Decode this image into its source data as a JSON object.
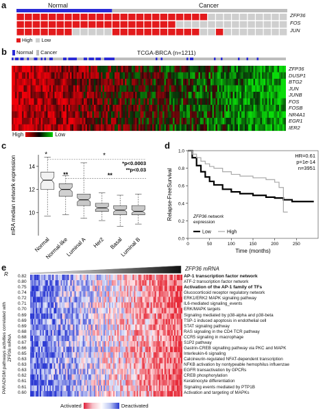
{
  "panel_a": {
    "letter": "a",
    "group_normal": "Normal",
    "group_cancer": "Cancer",
    "genes": [
      "ZFP36",
      "FOS",
      "JUN"
    ],
    "legend_high": "High",
    "legend_low": "Low",
    "colors": {
      "normal_bar": "#2b2bd6",
      "cancer_bar": "#bdbdbd",
      "high": "#e31a1c",
      "low": "#cfcfcf"
    }
  },
  "panel_b": {
    "letter": "b",
    "legend_normal": "Normal",
    "legend_cancer": "Cancer",
    "title": "TCGA-BRCA (n=1211)",
    "genes": [
      "ZFP36",
      "DUSP1",
      "BTG2",
      "JUN",
      "JUNB",
      "FOS",
      "FOSB",
      "NR4A1",
      "EGR1",
      "IER2"
    ],
    "scale_high": "High",
    "scale_low": "Low"
  },
  "panel_c": {
    "letter": "c",
    "chart_data": {
      "type": "box",
      "ylabel": "mRA median network expression",
      "categories": [
        "Normal",
        "Normal-like",
        "Luminal A",
        "Her2",
        "Basal",
        "Luminal B"
      ],
      "ylim": [
        8,
        15
      ],
      "yticks": [
        10,
        12,
        14
      ],
      "boxes": [
        {
          "min": 9.7,
          "q1": 12.0,
          "median": 12.8,
          "q3": 13.5,
          "max": 14.8
        },
        {
          "min": 9.8,
          "q1": 11.4,
          "median": 12.0,
          "q3": 12.5,
          "max": 13.2
        },
        {
          "min": 9.5,
          "q1": 10.6,
          "median": 11.1,
          "q3": 11.6,
          "max": 14.3
        },
        {
          "min": 9.3,
          "q1": 10.1,
          "median": 10.4,
          "q3": 10.8,
          "max": 11.7
        },
        {
          "min": 8.8,
          "q1": 9.8,
          "median": 10.2,
          "q3": 10.6,
          "max": 11.5
        },
        {
          "min": 9.0,
          "q1": 9.8,
          "median": 10.1,
          "q3": 10.6,
          "max": 11.6
        }
      ],
      "annotations": {
        "star": "*",
        "dstar": "**",
        "p1": "*p<0.0003",
        "p2": "**p<0.03"
      }
    }
  },
  "panel_d": {
    "letter": "d",
    "chart_data": {
      "type": "line",
      "ylabel": "Relapse-FreeSurvival",
      "xlabel": "Time (months)",
      "xlim": [
        0,
        300
      ],
      "ylim": [
        0,
        1
      ],
      "xticks": [
        0,
        50,
        100,
        150,
        200,
        250
      ],
      "yticks": [
        "0.0",
        "0.2",
        "0.4",
        "0.6",
        "0.8",
        "1.0"
      ],
      "stats": [
        "HR=0.61",
        "p=1e-14",
        "n=3951"
      ],
      "legend_title": "ZFP36 network expression",
      "series": [
        {
          "name": "Low",
          "x": [
            0,
            10,
            20,
            30,
            40,
            50,
            60,
            80,
            100,
            120,
            150,
            180,
            200,
            220,
            240,
            260,
            290
          ],
          "y": [
            1.0,
            0.92,
            0.83,
            0.76,
            0.7,
            0.65,
            0.61,
            0.56,
            0.53,
            0.51,
            0.49,
            0.47,
            0.46,
            0.44,
            0.42,
            0.42,
            0.42
          ]
        },
        {
          "name": "High",
          "x": [
            0,
            10,
            20,
            30,
            40,
            50,
            60,
            80,
            100,
            120,
            150,
            180,
            200,
            210,
            220,
            230
          ],
          "y": [
            1.0,
            0.96,
            0.92,
            0.88,
            0.85,
            0.82,
            0.8,
            0.76,
            0.73,
            0.71,
            0.69,
            0.67,
            0.64,
            0.58,
            0.3,
            0.3
          ]
        }
      ]
    }
  },
  "panel_e": {
    "letter": "e",
    "r_header": "R",
    "mrna_label": "ZFP36 mRNA",
    "side_label": "PARADIGM pathways activities correlated with ZFP36 mRNA",
    "rows": [
      {
        "r": "0.82",
        "name": "AP-1 transcription factor network",
        "bold": true
      },
      {
        "r": "0.80",
        "name": "ATF-2 transcription factor network",
        "bold": false
      },
      {
        "r": "0.75",
        "name": "Activation of the AP-1 family of TFs",
        "bold": true
      },
      {
        "r": "0.74",
        "name": "Glucocorticoid receptor regulatory network",
        "bold": false
      },
      {
        "r": "0.72",
        "name": "ERK1/ERK2 MAPK signaling pathway",
        "bold": false
      },
      {
        "r": "0.71",
        "name": "IL6-mediated signaling_events",
        "bold": false
      },
      {
        "r": "0.70",
        "name": "ERK/MAPK targets",
        "bold": false
      },
      {
        "r": "0.69",
        "name": "Signaling mediated by p38-alpha and p38-beta",
        "bold": false
      },
      {
        "r": "0.69",
        "name": "TSP-1 induced apoptosis in endothelial cell",
        "bold": false
      },
      {
        "r": "0.69",
        "name": "STAT signaling pathway",
        "bold": false
      },
      {
        "r": "0.68",
        "name": "RAS signaling in the CD4 TCR pathway",
        "bold": false
      },
      {
        "r": "0.68",
        "name": "CCR5 signaling in macrophage",
        "bold": false
      },
      {
        "r": "0.67",
        "name": "S1P2 pathway",
        "bold": false
      },
      {
        "r": "0.66",
        "name": "Gastrin-CREB signalling pathway via PKC and MAPK",
        "bold": false
      },
      {
        "r": "0.65",
        "name": "Interleukin-6 signaling",
        "bold": false
      },
      {
        "r": "0.63",
        "name": "Calcineurin-regulated NFAT-dependent transcription",
        "bold": false
      },
      {
        "r": "0.63",
        "name": "NFKB activation by nontypeable hemophilus influenzae",
        "bold": false
      },
      {
        "r": "0.63",
        "name": "EGFR transactivation by GPCRs",
        "bold": false
      },
      {
        "r": "0.62",
        "name": "CREB phosphorylation",
        "bold": false
      },
      {
        "r": "0.61",
        "name": "Keratinocyte differentiation",
        "bold": false
      },
      {
        "r": "0.61",
        "name": "Signaling events mediated by PTP1B",
        "bold": false
      },
      {
        "r": "0.60",
        "name": "Activation and targeting of MAPKs",
        "bold": false
      }
    ],
    "legend_activated": "Activated",
    "legend_deactivated": "Deactivated"
  }
}
